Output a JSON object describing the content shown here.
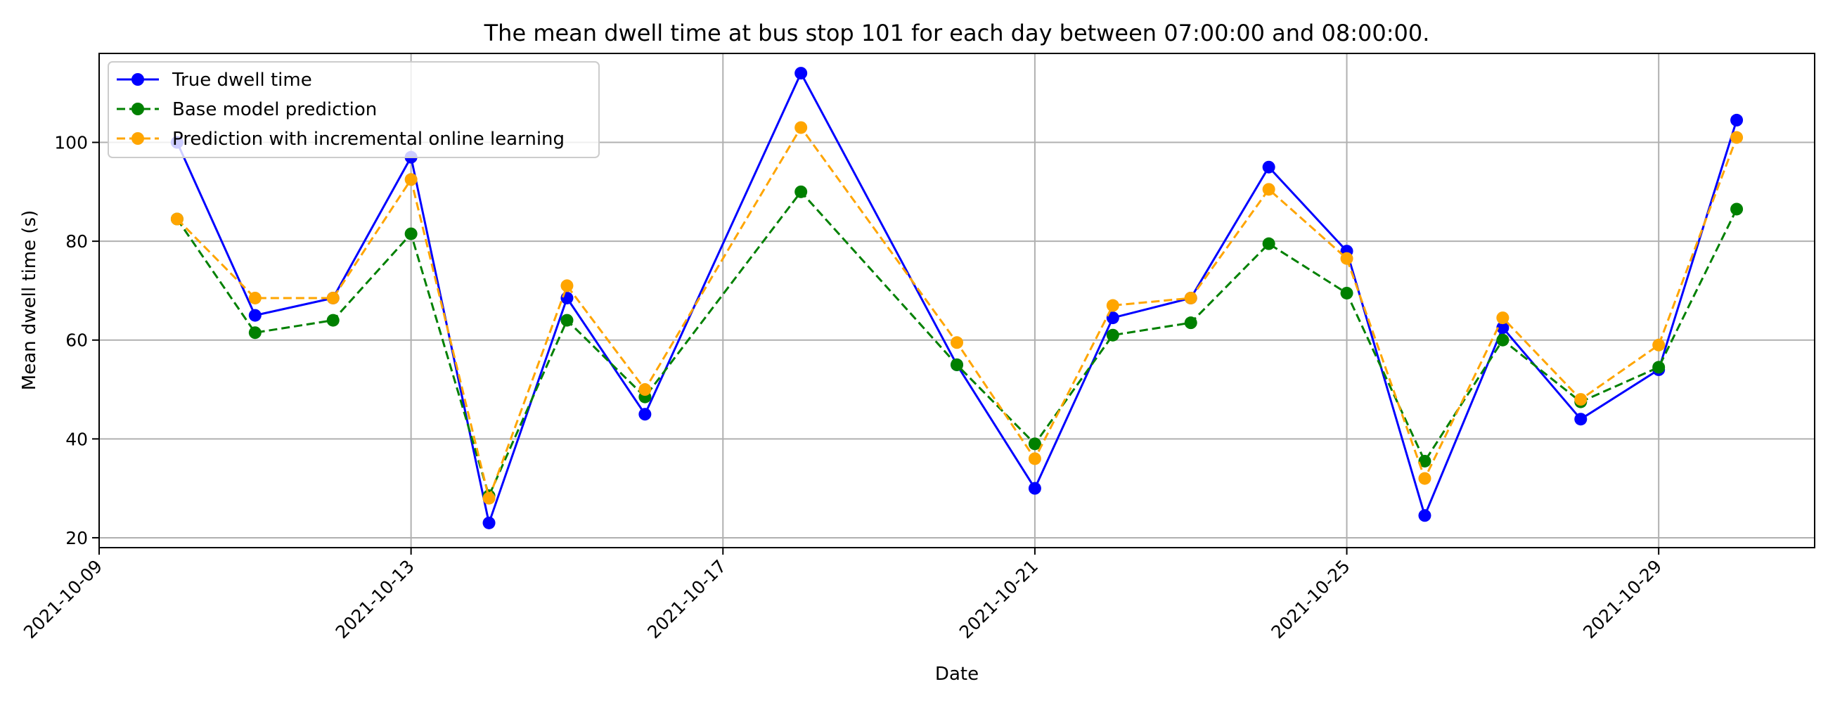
{
  "chart_data": {
    "type": "line",
    "title": "The mean dwell time at bus stop 101 for each day between 07:00:00 and 08:00:00.",
    "xlabel": "Date",
    "ylabel": "Mean dwell time (s)",
    "ylim": [
      18,
      118
    ],
    "xlim": [
      "2021-10-09",
      "2021-10-31"
    ],
    "grid": true,
    "legend_position": "top-left",
    "x_ticks": [
      "2021-10-09",
      "2021-10-13",
      "2021-10-17",
      "2021-10-21",
      "2021-10-25",
      "2021-10-29"
    ],
    "y_ticks": [
      20,
      40,
      60,
      80,
      100
    ],
    "series": [
      {
        "name": "True dwell time",
        "color": "#0000ff",
        "line_style": "solid",
        "marker": "circle",
        "points": [
          {
            "x": "2021-10-10",
            "y": 100
          },
          {
            "x": "2021-10-11",
            "y": 65
          },
          {
            "x": "2021-10-12",
            "y": 68.5
          },
          {
            "x": "2021-10-13",
            "y": 97
          },
          {
            "x": "2021-10-14",
            "y": 23
          },
          {
            "x": "2021-10-15",
            "y": 68.5
          },
          {
            "x": "2021-10-16",
            "y": 45
          },
          {
            "x": "2021-10-18",
            "y": 114
          },
          {
            "x": "2021-10-20",
            "y": 55
          },
          {
            "x": "2021-10-21",
            "y": 30
          },
          {
            "x": "2021-10-22",
            "y": 64.5
          },
          {
            "x": "2021-10-23",
            "y": 68.5
          },
          {
            "x": "2021-10-24",
            "y": 95
          },
          {
            "x": "2021-10-25",
            "y": 78
          },
          {
            "x": "2021-10-26",
            "y": 24.5
          },
          {
            "x": "2021-10-27",
            "y": 62.5
          },
          {
            "x": "2021-10-28",
            "y": 44
          },
          {
            "x": "2021-10-29",
            "y": 54
          },
          {
            "x": "2021-10-30",
            "y": 104.5
          }
        ]
      },
      {
        "name": "Base model prediction",
        "color": "#008000",
        "line_style": "dashed",
        "marker": "circle",
        "points": [
          {
            "x": "2021-10-10",
            "y": 84.5
          },
          {
            "x": "2021-10-11",
            "y": 61.5
          },
          {
            "x": "2021-10-12",
            "y": 64
          },
          {
            "x": "2021-10-13",
            "y": 81.5
          },
          {
            "x": "2021-10-14",
            "y": 28.5
          },
          {
            "x": "2021-10-15",
            "y": 64
          },
          {
            "x": "2021-10-16",
            "y": 48.5
          },
          {
            "x": "2021-10-18",
            "y": 90
          },
          {
            "x": "2021-10-20",
            "y": 55
          },
          {
            "x": "2021-10-21",
            "y": 39
          },
          {
            "x": "2021-10-22",
            "y": 61
          },
          {
            "x": "2021-10-23",
            "y": 63.5
          },
          {
            "x": "2021-10-24",
            "y": 79.5
          },
          {
            "x": "2021-10-25",
            "y": 69.5
          },
          {
            "x": "2021-10-26",
            "y": 35.5
          },
          {
            "x": "2021-10-27",
            "y": 60
          },
          {
            "x": "2021-10-28",
            "y": 47.5
          },
          {
            "x": "2021-10-29",
            "y": 54.5
          },
          {
            "x": "2021-10-30",
            "y": 86.5
          }
        ]
      },
      {
        "name": "Prediction with incremental online learning",
        "color": "#ffa500",
        "line_style": "dashed",
        "marker": "circle",
        "points": [
          {
            "x": "2021-10-10",
            "y": 84.5
          },
          {
            "x": "2021-10-11",
            "y": 68.5
          },
          {
            "x": "2021-10-12",
            "y": 68.5
          },
          {
            "x": "2021-10-13",
            "y": 92.5
          },
          {
            "x": "2021-10-14",
            "y": 28
          },
          {
            "x": "2021-10-15",
            "y": 71
          },
          {
            "x": "2021-10-16",
            "y": 50
          },
          {
            "x": "2021-10-18",
            "y": 103
          },
          {
            "x": "2021-10-20",
            "y": 59.5
          },
          {
            "x": "2021-10-21",
            "y": 36
          },
          {
            "x": "2021-10-22",
            "y": 67
          },
          {
            "x": "2021-10-23",
            "y": 68.5
          },
          {
            "x": "2021-10-24",
            "y": 90.5
          },
          {
            "x": "2021-10-25",
            "y": 76.5
          },
          {
            "x": "2021-10-26",
            "y": 32
          },
          {
            "x": "2021-10-27",
            "y": 64.5
          },
          {
            "x": "2021-10-28",
            "y": 48
          },
          {
            "x": "2021-10-29",
            "y": 59
          },
          {
            "x": "2021-10-30",
            "y": 101
          }
        ]
      }
    ]
  }
}
